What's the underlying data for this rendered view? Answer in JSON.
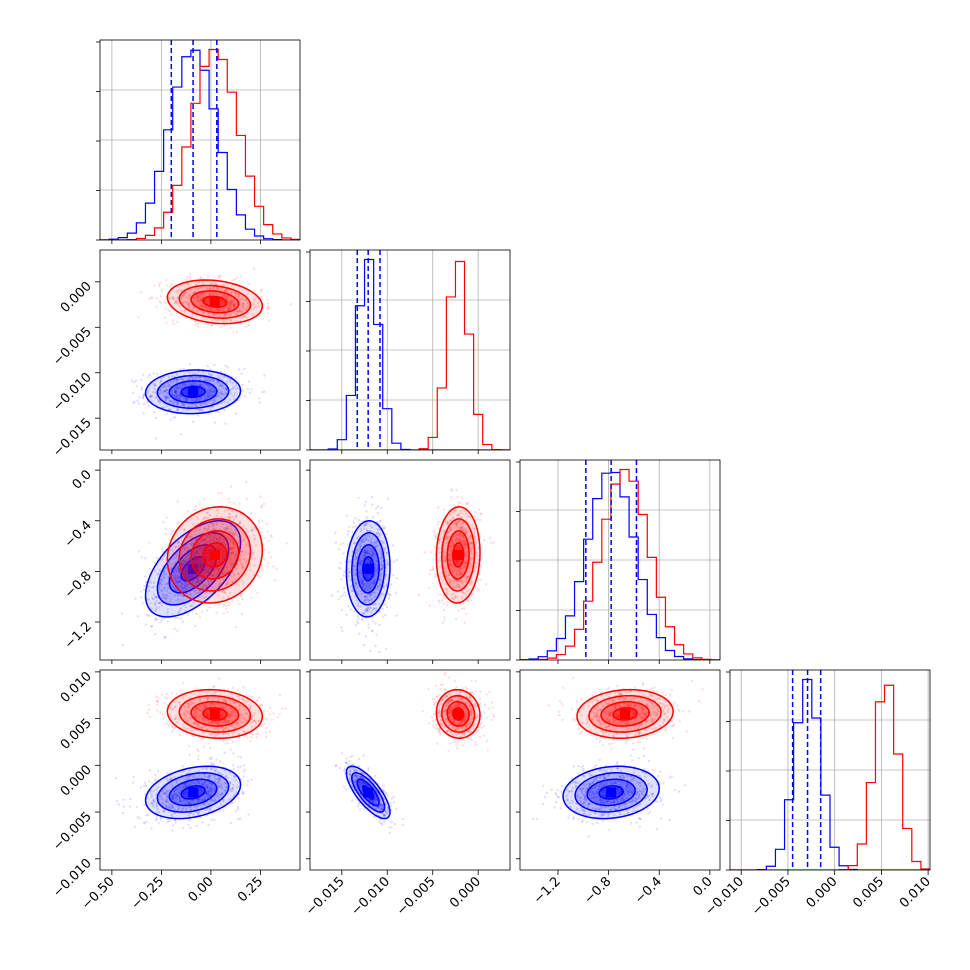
{
  "chart_data": {
    "type": "corner",
    "title": "",
    "parameters": [
      {
        "name": "",
        "range": [
          -0.56,
          0.45
        ],
        "ticks": [
          -0.5,
          -0.25,
          0.0,
          0.25
        ],
        "tick_labels": [
          "−0.50",
          "−0.25",
          "0.00",
          "0.25"
        ]
      },
      {
        "name": "",
        "range": [
          -0.0185,
          0.0035
        ],
        "ticks": [
          -0.015,
          -0.01,
          -0.005,
          0.0
        ],
        "tick_labels": [
          "−0.015",
          "−0.010",
          "−0.005",
          "0.000"
        ]
      },
      {
        "name": "",
        "range": [
          -1.5,
          0.08
        ],
        "ticks": [
          -1.2,
          -0.8,
          -0.4,
          0.0
        ],
        "tick_labels": [
          "−1.2",
          "−0.8",
          "−0.4",
          "0.0"
        ]
      },
      {
        "name": "",
        "range": [
          -0.0112,
          0.0102
        ],
        "ticks": [
          -0.01,
          -0.005,
          0.0,
          0.005,
          0.01
        ],
        "tick_labels": [
          "−0.010",
          "−0.005",
          "0.000",
          "0.005",
          "0.010"
        ]
      }
    ],
    "series": [
      {
        "name": "",
        "color": "#0000ff",
        "mean": [
          -0.09,
          -0.0121,
          -0.78,
          -0.0029
        ],
        "std": [
          0.12,
          0.0012,
          0.19,
          0.0014
        ],
        "quantiles": [
          [
            -0.2,
            -0.09,
            0.03
          ],
          [
            -0.0133,
            -0.0121,
            -0.0108
          ],
          [
            -0.98,
            -0.78,
            -0.58
          ],
          [
            -0.0045,
            -0.0029,
            -0.0015
          ]
        ],
        "corr": [
          [
            1,
            0.05,
            0.55,
            0.3
          ],
          [
            0.05,
            1,
            0.05,
            -0.75
          ],
          [
            0.55,
            0.05,
            1,
            0.15
          ],
          [
            0.3,
            -0.75,
            0.15,
            1
          ]
        ]
      },
      {
        "name": "",
        "color": "#ff0000",
        "mean": [
          0.02,
          -0.0022,
          -0.67,
          0.0055
        ],
        "std": [
          0.12,
          0.0012,
          0.19,
          0.0013
        ],
        "corr": [
          [
            1,
            -0.2,
            0.1,
            -0.1
          ],
          [
            -0.2,
            1,
            0.05,
            -0.05
          ],
          [
            0.1,
            0.05,
            1,
            0.1
          ],
          [
            -0.1,
            -0.05,
            0.1,
            1
          ]
        ]
      }
    ],
    "quantile_lines_series": 0,
    "grid": true,
    "legend": "none"
  }
}
